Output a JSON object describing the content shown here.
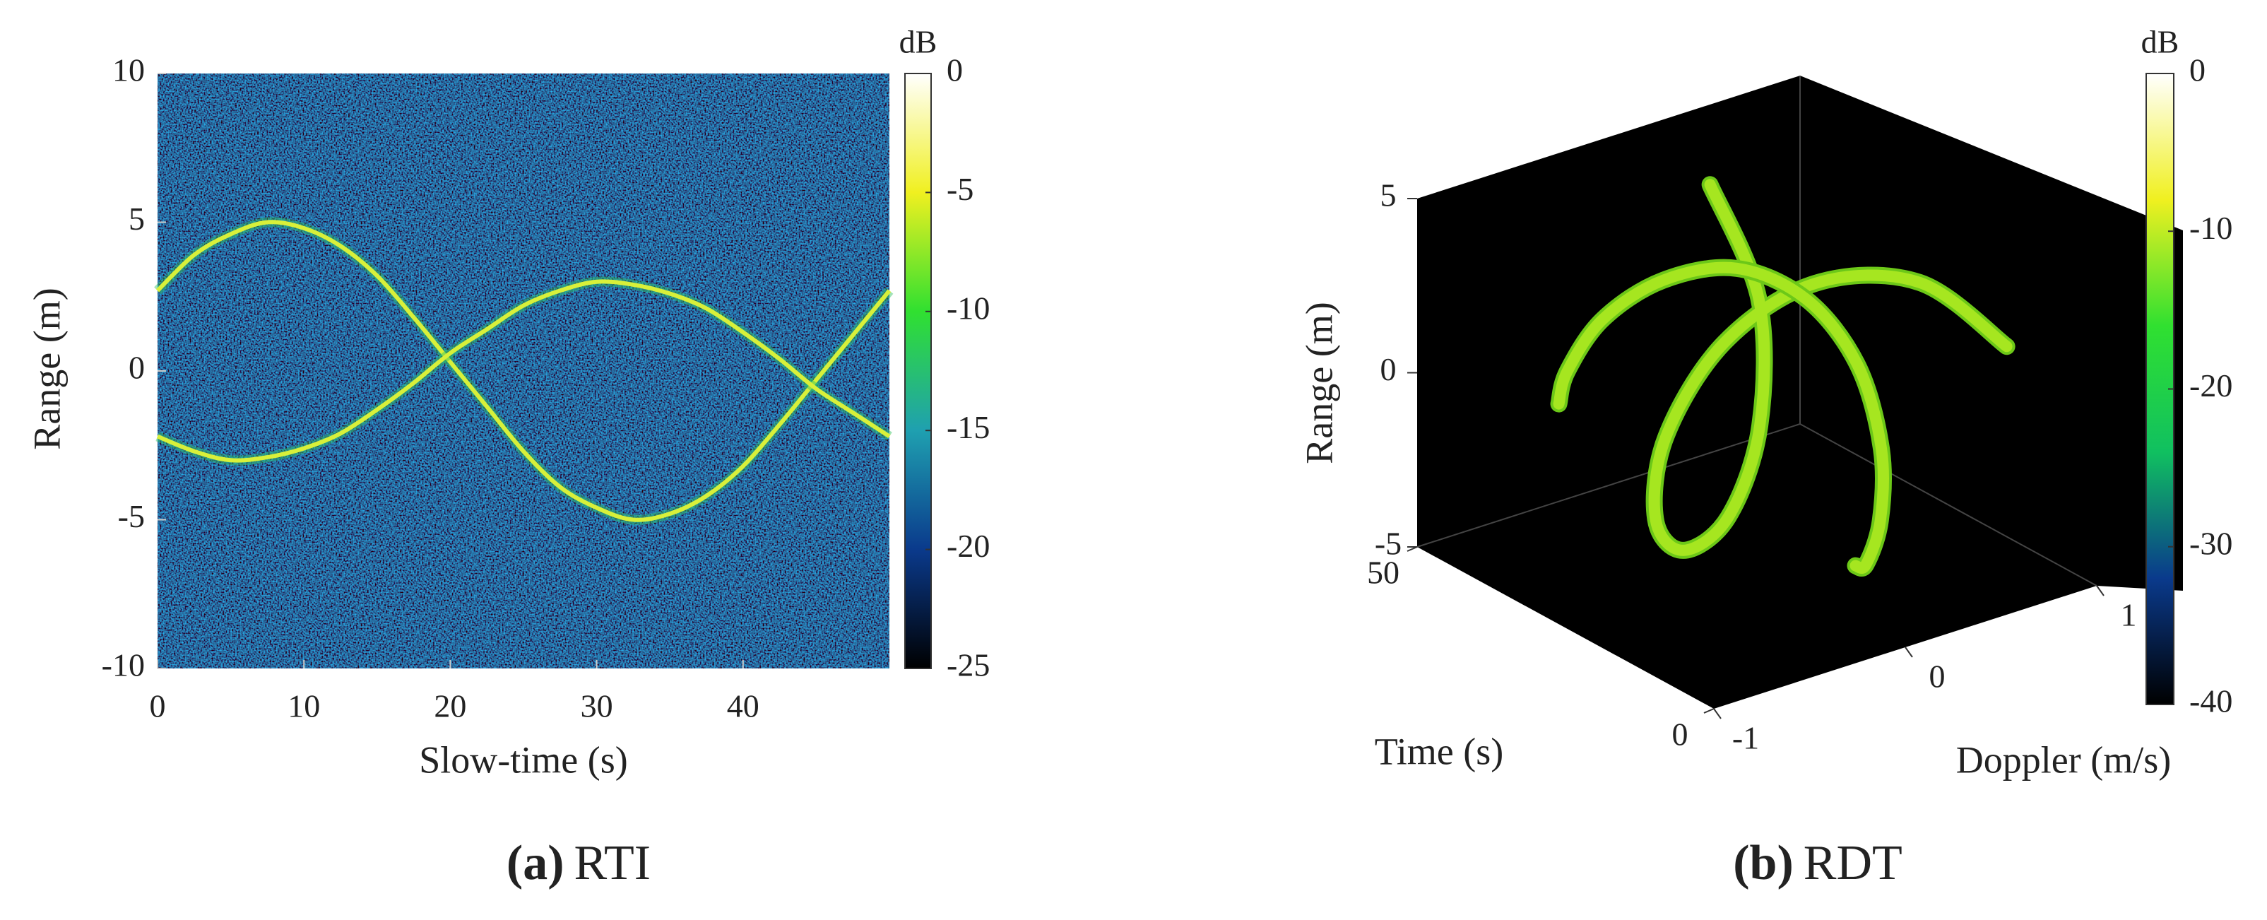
{
  "chart_data": [
    {
      "type": "heatmap",
      "caption_label": "(a)",
      "caption": "RTI",
      "xlabel": "Slow-time (s)",
      "ylabel": "Range (m)",
      "xlim": [
        0,
        50
      ],
      "xticks": [
        0,
        10,
        20,
        30,
        40
      ],
      "ylim": [
        -10,
        10
      ],
      "yticks": [
        -10,
        -5,
        0,
        5,
        10
      ],
      "x": [
        0,
        2.5,
        5,
        7.5,
        10,
        12.5,
        15,
        17.5,
        20,
        22.5,
        25,
        27.5,
        30,
        32.5,
        35,
        37.5,
        40,
        42.5,
        45,
        47.5,
        50
      ],
      "series": [
        {
          "color": "#d8f03a",
          "values": [
            2.7,
            3.9,
            4.6,
            5.0,
            4.8,
            4.2,
            3.2,
            1.8,
            0.3,
            -1.2,
            -2.7,
            -3.9,
            -4.6,
            -5.0,
            -4.8,
            -4.2,
            -3.2,
            -1.8,
            -0.3,
            1.2,
            2.7
          ]
        },
        {
          "color": "#d8f03a",
          "values": [
            -2.2,
            -2.7,
            -3.0,
            -2.9,
            -2.6,
            -2.1,
            -1.3,
            -0.4,
            0.6,
            1.4,
            2.2,
            2.7,
            3.0,
            2.9,
            2.6,
            2.1,
            1.3,
            0.4,
            -0.6,
            -1.4,
            -2.2
          ]
        }
      ],
      "colorbar": {
        "label": "dB",
        "lim": [
          -25,
          0
        ],
        "ticks": [
          -25,
          -20,
          -15,
          -10,
          -5,
          0
        ],
        "colors": [
          "#000000",
          "#0a3a8c",
          "#1fa0b0",
          "#30e030",
          "#f0f020",
          "#ffffff"
        ]
      }
    },
    {
      "type": "line3d",
      "caption_label": "(b)",
      "caption": "RDT",
      "xlabel": "Time (s)",
      "ylabel": "Doppler (m/s)",
      "zlabel": "Range (m)",
      "xlim": [
        0,
        50
      ],
      "xticks": [
        0,
        50
      ],
      "ylim": [
        -1,
        1
      ],
      "yticks": [
        -1,
        0,
        1
      ],
      "zlim": [
        -5,
        5
      ],
      "zticks": [
        -5,
        0,
        5
      ],
      "x": [
        0,
        5,
        10,
        15,
        20,
        25,
        30,
        35,
        40,
        45,
        50
      ],
      "series": [
        {
          "color": "#a6e620",
          "doppler": [
            0.53,
            0.23,
            -0.16,
            -0.48,
            -0.63,
            -0.53,
            -0.23,
            0.16,
            0.48,
            0.63,
            0.53
          ],
          "range": [
            2.7,
            4.6,
            4.8,
            3.2,
            0.3,
            -2.7,
            -4.6,
            -4.8,
            -3.2,
            -0.3,
            2.7
          ]
        },
        {
          "color": "#a6e620",
          "doppler": [
            -0.26,
            -0.05,
            0.18,
            0.34,
            0.37,
            0.26,
            0.05,
            -0.18,
            -0.34,
            -0.37,
            -0.26
          ],
          "range": [
            -2.2,
            -3.0,
            -2.6,
            -1.3,
            0.6,
            2.2,
            3.0,
            2.6,
            1.3,
            -0.6,
            -2.2
          ]
        }
      ],
      "colorbar": {
        "label": "dB",
        "lim": [
          -40,
          0
        ],
        "ticks": [
          -40,
          -30,
          -20,
          -10,
          0
        ],
        "colors": [
          "#000000",
          "#0a3a8c",
          "#10c060",
          "#30e030",
          "#f0f020",
          "#ffffff"
        ]
      }
    }
  ]
}
